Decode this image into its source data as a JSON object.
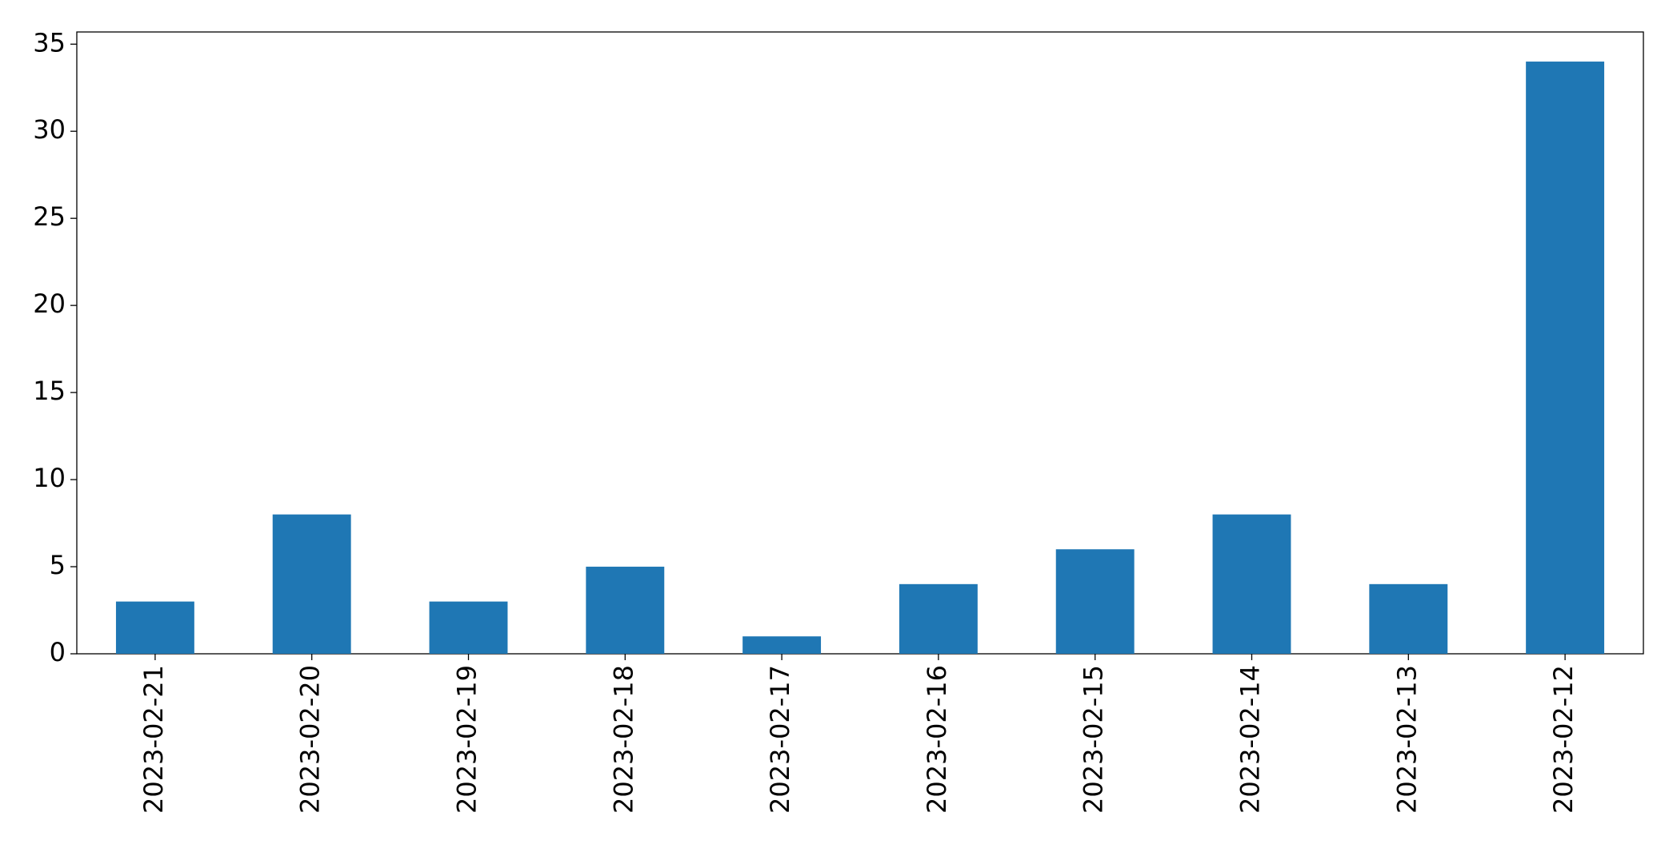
{
  "chart_data": {
    "type": "bar",
    "categories": [
      "2023-02-21",
      "2023-02-20",
      "2023-02-19",
      "2023-02-18",
      "2023-02-17",
      "2023-02-16",
      "2023-02-15",
      "2023-02-14",
      "2023-02-13",
      "2023-02-12"
    ],
    "values": [
      3,
      8,
      3,
      5,
      1,
      4,
      6,
      8,
      4,
      34
    ],
    "color": "#1f77b4",
    "ylim": [
      0,
      35.7
    ],
    "yticks": [
      0,
      5,
      10,
      15,
      20,
      25,
      30,
      35
    ],
    "grid": false
  }
}
